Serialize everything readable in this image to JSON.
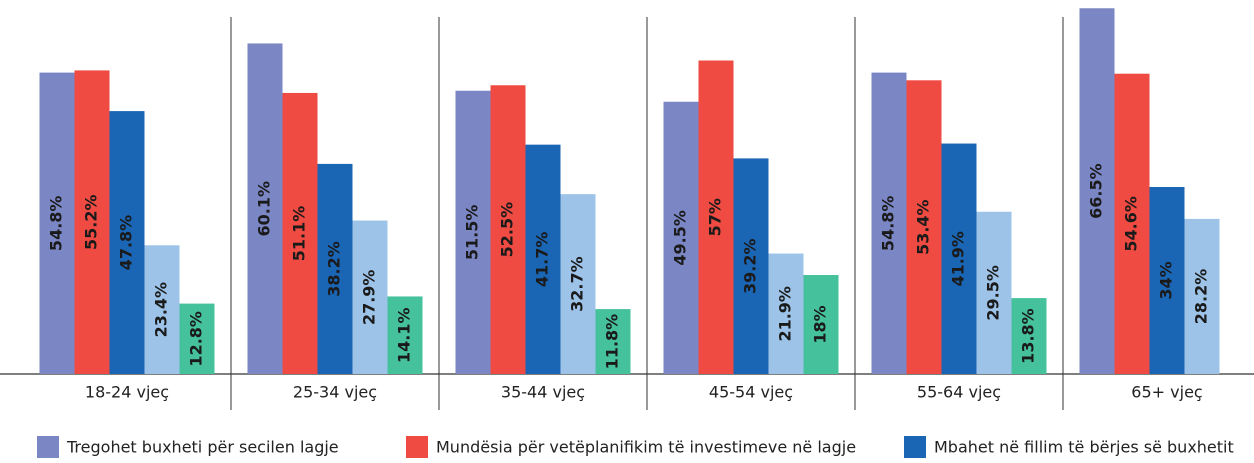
{
  "chart_data": {
    "type": "bar",
    "categories": [
      "18-24 vjeç",
      "25-34 vjeç",
      "35-44 vjeç",
      "45-54 vjeç",
      "55-64 vjeç",
      "65+ vjeç"
    ],
    "ylim": [
      0,
      68
    ],
    "series": [
      {
        "name": "Tregohet buxheti për secilen lagje",
        "color": "#7b86c4",
        "values": [
          54.8,
          60.1,
          51.5,
          49.5,
          54.8,
          66.5
        ],
        "value_labels": [
          "54.8%",
          "60.1%",
          "51.5%",
          "49.5%",
          "54.8%",
          "66.5%"
        ]
      },
      {
        "name": "Mundësia për vetëplanifikim të investimeve në lagje",
        "color": "#ef4b42",
        "values": [
          55.2,
          51.1,
          52.5,
          57,
          53.4,
          54.6
        ],
        "value_labels": [
          "55.2%",
          "51.1%",
          "52.5%",
          "57%",
          "53.4%",
          "54.6%"
        ]
      },
      {
        "name": "Mbahet në fillim të bërjes së buxhetit",
        "color": "#1a66b5",
        "values": [
          47.8,
          38.2,
          41.7,
          39.2,
          41.9,
          34
        ],
        "value_labels": [
          "47.8%",
          "38.2%",
          "41.7%",
          "39.2%",
          "41.9%",
          "34%"
        ]
      },
      {
        "color": "#9dc3e8",
        "values": [
          23.4,
          27.9,
          32.7,
          21.9,
          29.5,
          28.2
        ],
        "value_labels": [
          "23.4%",
          "27.9%",
          "32.7%",
          "21.9%",
          "29.5%",
          "28.2%"
        ]
      },
      {
        "color": "#45c19b",
        "values": [
          12.8,
          14.1,
          11.8,
          18,
          13.8,
          null
        ],
        "value_labels": [
          "12.8%",
          "14.1%",
          "11.8%",
          "18%",
          "13.8%",
          null
        ]
      }
    ]
  }
}
